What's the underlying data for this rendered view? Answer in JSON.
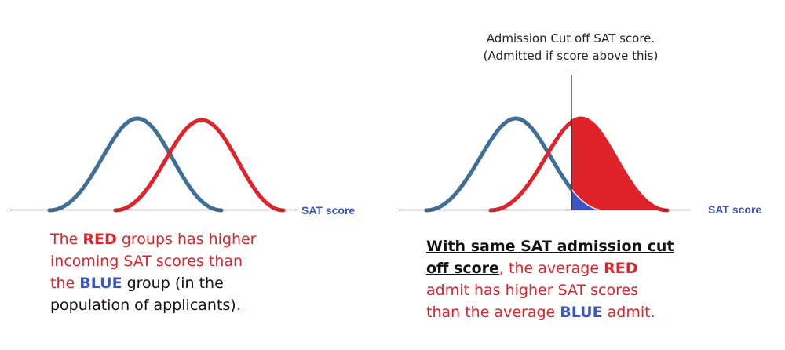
{
  "colors": {
    "red": "#e0222b",
    "blue_curve": "#3f6e96",
    "blue_text": "#3a56c4",
    "axis": "#2b2b2b"
  },
  "left_panel": {
    "axis_label": "SAT score",
    "caption": {
      "l1_a": "The ",
      "l1_b": "RED",
      "l1_c": " groups has higher",
      "l2": "incoming SAT scores than",
      "l3_a": "the ",
      "l3_b": "BLUE",
      "l3_c": " group (in the",
      "l4_a": "population of applicants)",
      "l4_b": "."
    }
  },
  "right_panel": {
    "axis_label": "SAT score",
    "cutoff_label_1": "Admission Cut off SAT score.",
    "cutoff_label_2": "(Admitted if score above this)",
    "caption": {
      "l1": "With same SAT admission cut",
      "l2_a": "off score",
      "l2_b": ", the average ",
      "l2_c": "RED",
      "l3": "admit has higher SAT scores",
      "l4_a": "than the average ",
      "l4_b": "BLUE",
      "l4_c": " admit."
    }
  }
}
